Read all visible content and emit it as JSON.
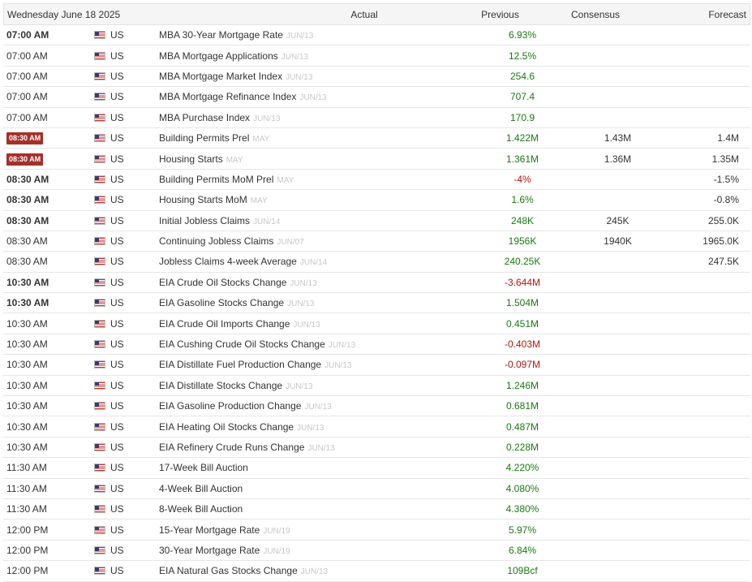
{
  "header": {
    "date": "Wednesday June 18 2025",
    "actual": "Actual",
    "previous": "Previous",
    "consensus": "Consensus",
    "forecast": "Forecast"
  },
  "colors": {
    "positive": "#1a7a12",
    "negative": "#b0170f",
    "badge": "#a4302a"
  },
  "rows": [
    {
      "time": "07:00 AM",
      "style": "bold",
      "country": "US",
      "event": "MBA 30-Year Mortgage Rate",
      "ref": "JUN/13",
      "actual": "",
      "previous": "6.93%",
      "prev_sign": "pos",
      "consensus": "",
      "forecast": ""
    },
    {
      "time": "07:00 AM",
      "style": "normal",
      "country": "US",
      "event": "MBA Mortgage Applications",
      "ref": "JUN/13",
      "actual": "",
      "previous": "12.5%",
      "prev_sign": "pos",
      "consensus": "",
      "forecast": ""
    },
    {
      "time": "07:00 AM",
      "style": "normal",
      "country": "US",
      "event": "MBA Mortgage Market Index",
      "ref": "JUN/13",
      "actual": "",
      "previous": "254.6",
      "prev_sign": "pos",
      "consensus": "",
      "forecast": ""
    },
    {
      "time": "07:00 AM",
      "style": "normal",
      "country": "US",
      "event": "MBA Mortgage Refinance Index",
      "ref": "JUN/13",
      "actual": "",
      "previous": "707.4",
      "prev_sign": "pos",
      "consensus": "",
      "forecast": ""
    },
    {
      "time": "07:00 AM",
      "style": "normal",
      "country": "US",
      "event": "MBA Purchase Index",
      "ref": "JUN/13",
      "actual": "",
      "previous": "170.9",
      "prev_sign": "pos",
      "consensus": "",
      "forecast": ""
    },
    {
      "time": "08:30 AM",
      "style": "badge",
      "country": "US",
      "event": "Building Permits Prel",
      "ref": "MAY",
      "actual": "",
      "previous": "1.422M",
      "prev_sign": "pos",
      "consensus": "1.43M",
      "forecast": "1.4M"
    },
    {
      "time": "08:30 AM",
      "style": "badge",
      "country": "US",
      "event": "Housing Starts",
      "ref": "MAY",
      "actual": "",
      "previous": "1.361M",
      "prev_sign": "pos",
      "consensus": "1.36M",
      "forecast": "1.35M"
    },
    {
      "time": "08:30 AM",
      "style": "bold",
      "country": "US",
      "event": "Building Permits MoM Prel",
      "ref": "MAY",
      "actual": "",
      "previous": "-4%",
      "prev_sign": "neg",
      "consensus": "",
      "forecast": "-1.5%"
    },
    {
      "time": "08:30 AM",
      "style": "bold",
      "country": "US",
      "event": "Housing Starts MoM",
      "ref": "MAY",
      "actual": "",
      "previous": "1.6%",
      "prev_sign": "pos",
      "consensus": "",
      "forecast": "-0.8%"
    },
    {
      "time": "08:30 AM",
      "style": "bold",
      "country": "US",
      "event": "Initial Jobless Claims",
      "ref": "JUN/14",
      "actual": "",
      "previous": "248K",
      "prev_sign": "pos",
      "consensus": "245K",
      "forecast": "255.0K"
    },
    {
      "time": "08:30 AM",
      "style": "normal",
      "country": "US",
      "event": "Continuing Jobless Claims",
      "ref": "JUN/07",
      "actual": "",
      "previous": "1956K",
      "prev_sign": "pos",
      "consensus": "1940K",
      "forecast": "1965.0K"
    },
    {
      "time": "08:30 AM",
      "style": "normal",
      "country": "US",
      "event": "Jobless Claims 4-week Average",
      "ref": "JUN/14",
      "actual": "",
      "previous": "240.25K",
      "prev_sign": "pos",
      "consensus": "",
      "forecast": "247.5K"
    },
    {
      "time": "10:30 AM",
      "style": "bold",
      "country": "US",
      "event": "EIA Crude Oil Stocks Change",
      "ref": "JUN/13",
      "actual": "",
      "previous": "-3.644M",
      "prev_sign": "neg",
      "consensus": "",
      "forecast": ""
    },
    {
      "time": "10:30 AM",
      "style": "bold",
      "country": "US",
      "event": "EIA Gasoline Stocks Change",
      "ref": "JUN/13",
      "actual": "",
      "previous": "1.504M",
      "prev_sign": "pos",
      "consensus": "",
      "forecast": ""
    },
    {
      "time": "10:30 AM",
      "style": "normal",
      "country": "US",
      "event": "EIA Crude Oil Imports Change",
      "ref": "JUN/13",
      "actual": "",
      "previous": "0.451M",
      "prev_sign": "pos",
      "consensus": "",
      "forecast": ""
    },
    {
      "time": "10:30 AM",
      "style": "normal",
      "country": "US",
      "event": "EIA Cushing Crude Oil Stocks Change",
      "ref": "JUN/13",
      "actual": "",
      "previous": "-0.403M",
      "prev_sign": "neg",
      "consensus": "",
      "forecast": ""
    },
    {
      "time": "10:30 AM",
      "style": "normal",
      "country": "US",
      "event": "EIA Distillate Fuel Production Change",
      "ref": "JUN/13",
      "actual": "",
      "previous": "-0.097M",
      "prev_sign": "neg",
      "consensus": "",
      "forecast": ""
    },
    {
      "time": "10:30 AM",
      "style": "normal",
      "country": "US",
      "event": "EIA Distillate Stocks Change",
      "ref": "JUN/13",
      "actual": "",
      "previous": "1.246M",
      "prev_sign": "pos",
      "consensus": "",
      "forecast": ""
    },
    {
      "time": "10:30 AM",
      "style": "normal",
      "country": "US",
      "event": "EIA Gasoline Production Change",
      "ref": "JUN/13",
      "actual": "",
      "previous": "0.681M",
      "prev_sign": "pos",
      "consensus": "",
      "forecast": ""
    },
    {
      "time": "10:30 AM",
      "style": "normal",
      "country": "US",
      "event": "EIA Heating Oil Stocks Change",
      "ref": "JUN/13",
      "actual": "",
      "previous": "0.487M",
      "prev_sign": "pos",
      "consensus": "",
      "forecast": ""
    },
    {
      "time": "10:30 AM",
      "style": "normal",
      "country": "US",
      "event": "EIA Refinery Crude Runs Change",
      "ref": "JUN/13",
      "actual": "",
      "previous": "0.228M",
      "prev_sign": "pos",
      "consensus": "",
      "forecast": ""
    },
    {
      "time": "11:30 AM",
      "style": "normal",
      "country": "US",
      "event": "17-Week Bill Auction",
      "ref": "",
      "actual": "",
      "previous": "4.220%",
      "prev_sign": "pos",
      "consensus": "",
      "forecast": ""
    },
    {
      "time": "11:30 AM",
      "style": "normal",
      "country": "US",
      "event": "4-Week Bill Auction",
      "ref": "",
      "actual": "",
      "previous": "4.080%",
      "prev_sign": "pos",
      "consensus": "",
      "forecast": ""
    },
    {
      "time": "11:30 AM",
      "style": "normal",
      "country": "US",
      "event": "8-Week Bill Auction",
      "ref": "",
      "actual": "",
      "previous": "4.380%",
      "prev_sign": "pos",
      "consensus": "",
      "forecast": ""
    },
    {
      "time": "12:00 PM",
      "style": "normal",
      "country": "US",
      "event": "15-Year Mortgage Rate",
      "ref": "JUN/19",
      "actual": "",
      "previous": "5.97%",
      "prev_sign": "pos",
      "consensus": "",
      "forecast": ""
    },
    {
      "time": "12:00 PM",
      "style": "normal",
      "country": "US",
      "event": "30-Year Mortgage Rate",
      "ref": "JUN/19",
      "actual": "",
      "previous": "6.84%",
      "prev_sign": "pos",
      "consensus": "",
      "forecast": ""
    },
    {
      "time": "12:00 PM",
      "style": "normal",
      "country": "US",
      "event": "EIA Natural Gas Stocks Change",
      "ref": "JUN/13",
      "actual": "",
      "previous": "109Bcf",
      "prev_sign": "pos",
      "consensus": "",
      "forecast": ""
    }
  ]
}
